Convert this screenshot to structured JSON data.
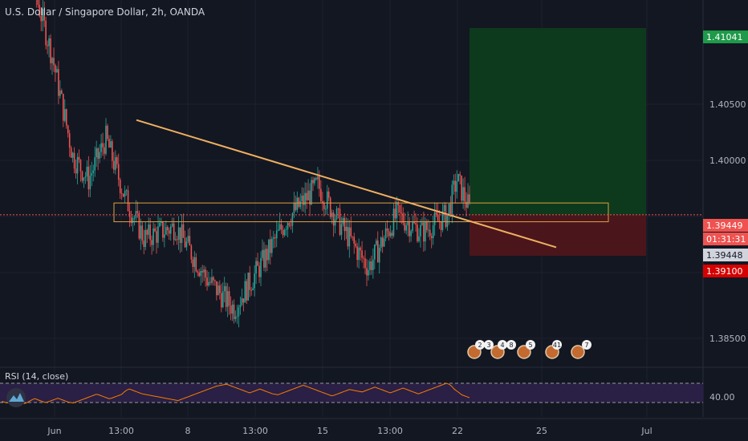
{
  "header": {
    "title": "U.S. Dollar / Singapore Dollar, 2h, OANDA"
  },
  "colors": {
    "background": "#131722",
    "up": "#26a69a",
    "down": "#ef5350",
    "trendline": "#f0b060",
    "zone": "#e0a040",
    "target": "#0d3a1c",
    "stop": "#4a161c",
    "rsi_line": "#f57c00",
    "rsi_band": "#2a1f44",
    "price_label": "#ef5350",
    "target_label": "#1e9a4a",
    "stop_label": "#d50000"
  },
  "chart_data": {
    "type": "candlestick",
    "title": "U.S. Dollar / Singapore Dollar, 2h, OANDA",
    "y_ticks": [
      "1.40500",
      "1.40000",
      "1.38500",
      "40.00"
    ],
    "price_labels": [
      {
        "name": "target",
        "value": "1.41041"
      },
      {
        "name": "last",
        "value": "1.39449"
      },
      {
        "name": "countdown",
        "value": "01:31:31"
      },
      {
        "name": "bid",
        "value": "1.39448"
      },
      {
        "name": "stop",
        "value": "1.39100"
      }
    ],
    "x_ticks": [
      "Jun",
      "13:00",
      "8",
      "13:00",
      "15",
      "13:00",
      "22",
      "25",
      "Jul"
    ],
    "ylim": [
      1.3815,
      1.4128
    ],
    "current_price": 1.39449,
    "trendline": {
      "from": [
        1.40257
      ],
      "to": [
        1.39172
      ]
    },
    "zone": {
      "upper": 1.3955,
      "lower": 1.3939
    },
    "position": {
      "target": 1.41041,
      "entry": 1.39449,
      "stop": 1.391
    },
    "events": [
      "2",
      "3",
      "4",
      "8",
      "5",
      "41",
      "7"
    ],
    "rsi": {
      "label": "RSI (14, close)",
      "upper": 70,
      "lower": 30,
      "tick": "40.00",
      "values": [
        32,
        31,
        29,
        30,
        33,
        35,
        33,
        31,
        29,
        28,
        30,
        33,
        36,
        38,
        36,
        34,
        32,
        30,
        31,
        33,
        35,
        37,
        39,
        37,
        35,
        33,
        31,
        30,
        29,
        31,
        33,
        35,
        37,
        39,
        41,
        43,
        45,
        47,
        46,
        44,
        42,
        40,
        38,
        39,
        41,
        43,
        45,
        47,
        52,
        56,
        58,
        56,
        54,
        52,
        50,
        48,
        47,
        46,
        45,
        44,
        43,
        42,
        41,
        40,
        39,
        38,
        37,
        36,
        35,
        34,
        36,
        38,
        40,
        42,
        44,
        46,
        48,
        50,
        52,
        54,
        56,
        58,
        60,
        62,
        64,
        65,
        66,
        67,
        68,
        66,
        64,
        62,
        60,
        58,
        56,
        54,
        52,
        50,
        52,
        54,
        56,
        58,
        56,
        54,
        52,
        50,
        48,
        47,
        46,
        48,
        50,
        52,
        54,
        56,
        58,
        60,
        62,
        64,
        66,
        64,
        62,
        60,
        58,
        56,
        54,
        52,
        50,
        48,
        46,
        44,
        45,
        47,
        49,
        51,
        53,
        55,
        57,
        56,
        55,
        54,
        53,
        52,
        54,
        56,
        58,
        60,
        62,
        60,
        58,
        56,
        54,
        52,
        50,
        52,
        54,
        56,
        58,
        60,
        58,
        56,
        54,
        52,
        50,
        48,
        50,
        52,
        54,
        56,
        58,
        60,
        62,
        64,
        66,
        68,
        70,
        68,
        64,
        58,
        54,
        50,
        46,
        44,
        42,
        40
      ]
    }
  }
}
